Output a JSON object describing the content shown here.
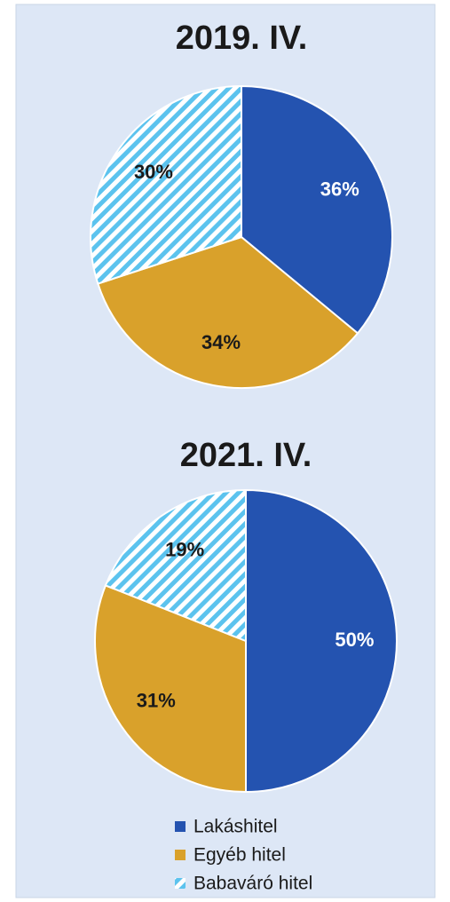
{
  "chart_data": [
    {
      "type": "pie",
      "title": "2019. IV.",
      "categories": [
        "Lakáshitel",
        "Egyéb hitel",
        "Babaváró hitel"
      ],
      "values": [
        36,
        34,
        30
      ],
      "value_labels": [
        "36%",
        "34%",
        "30%"
      ],
      "colors": [
        "#2453b0",
        "#d9a12b",
        "#5cc3ee"
      ],
      "patterns": [
        "solid",
        "solid",
        "hatch"
      ],
      "label_colors": [
        "#ffffff",
        "#1a1a1a",
        "#1a1a1a"
      ]
    },
    {
      "type": "pie",
      "title": "2021. IV.",
      "categories": [
        "Lakáshitel",
        "Egyéb hitel",
        "Babaváró hitel"
      ],
      "values": [
        50,
        31,
        19
      ],
      "value_labels": [
        "50%",
        "31%",
        "19%"
      ],
      "colors": [
        "#2453b0",
        "#d9a12b",
        "#5cc3ee"
      ],
      "patterns": [
        "solid",
        "solid",
        "hatch"
      ],
      "label_colors": [
        "#ffffff",
        "#1a1a1a",
        "#1a1a1a"
      ]
    }
  ]
}
